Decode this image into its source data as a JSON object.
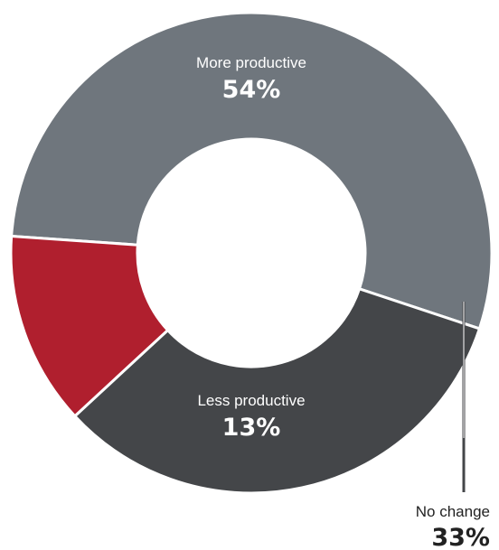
{
  "chart_data": {
    "type": "pie",
    "categories": [
      "More productive",
      "No change",
      "Less productive"
    ],
    "values": [
      54,
      33,
      13
    ],
    "value_labels": [
      "54%",
      "33%",
      "13%"
    ],
    "colors": [
      "#6f767d",
      "#444649",
      "#b01f2e"
    ],
    "legend": "none",
    "title": "",
    "donut": true
  }
}
